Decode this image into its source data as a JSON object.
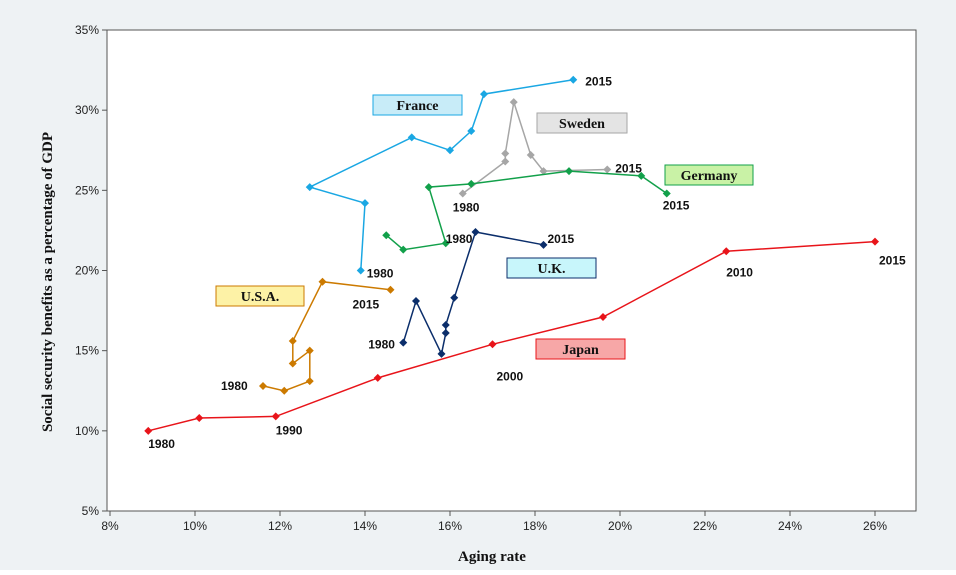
{
  "chart_data": {
    "type": "line",
    "xlabel": "Aging rate",
    "ylabel": "Social security benefits as a percentage of GDP",
    "xlim": [
      8,
      27
    ],
    "ylim": [
      5,
      35
    ],
    "x_ticks": [
      "8%",
      "10%",
      "12%",
      "14%",
      "16%",
      "18%",
      "20%",
      "22%",
      "24%",
      "26%"
    ],
    "y_ticks": [
      "5%",
      "10%",
      "15%",
      "20%",
      "25%",
      "30%",
      "35%"
    ],
    "grid": false,
    "series": [
      {
        "name": "Japan",
        "color": "#e8141a",
        "box_color": "#f7a7a7",
        "points": [
          [
            8.9,
            10.0
          ],
          [
            10.1,
            10.8
          ],
          [
            11.9,
            10.9
          ],
          [
            14.3,
            13.3
          ],
          [
            17.0,
            15.4
          ],
          [
            19.6,
            17.1
          ],
          [
            22.5,
            21.2
          ],
          [
            26.0,
            21.8
          ]
        ],
        "point_labels": [
          {
            "index": 0,
            "text": "1980"
          },
          {
            "index": 2,
            "text": "1990"
          },
          {
            "index": 4,
            "text": "2000"
          },
          {
            "index": 6,
            "text": "2010"
          },
          {
            "index": 7,
            "text": "2015"
          }
        ]
      },
      {
        "name": "U.S.A.",
        "color": "#cc7a00",
        "box_color": "#fdf2a6",
        "points": [
          [
            11.6,
            12.8
          ],
          [
            12.1,
            12.5
          ],
          [
            12.7,
            13.1
          ],
          [
            12.7,
            15.0
          ],
          [
            12.3,
            14.2
          ],
          [
            12.3,
            15.6
          ],
          [
            13.0,
            19.3
          ],
          [
            14.6,
            18.8
          ]
        ],
        "point_labels": [
          {
            "index": 0,
            "text": "1980"
          },
          {
            "index": 7,
            "text": "2015"
          }
        ]
      },
      {
        "name": "U.K.",
        "color": "#0b2e6b",
        "box_color": "#c8f6fb",
        "points": [
          [
            14.9,
            15.5
          ],
          [
            15.2,
            18.1
          ],
          [
            15.8,
            14.8
          ],
          [
            15.9,
            16.1
          ],
          [
            15.9,
            16.6
          ],
          [
            16.1,
            18.3
          ],
          [
            16.6,
            22.4
          ],
          [
            18.2,
            21.6
          ]
        ],
        "point_labels": [
          {
            "index": 0,
            "text": "1980"
          },
          {
            "index": 7,
            "text": "2015"
          }
        ]
      },
      {
        "name": "France",
        "color": "#1aa7e3",
        "box_color": "#c8ecf8",
        "points": [
          [
            13.9,
            20.0
          ],
          [
            14.0,
            24.2
          ],
          [
            12.7,
            25.2
          ],
          [
            15.1,
            28.3
          ],
          [
            16.0,
            27.5
          ],
          [
            16.5,
            28.7
          ],
          [
            16.8,
            31.0
          ],
          [
            18.9,
            31.9
          ]
        ],
        "point_labels": [
          {
            "index": 0,
            "text": "1980"
          },
          {
            "index": 7,
            "text": "2015"
          }
        ]
      },
      {
        "name": "Sweden",
        "color": "#a6a6a6",
        "box_color": "#e4e4e4",
        "points": [
          [
            16.3,
            24.8
          ],
          [
            17.3,
            26.8
          ],
          [
            17.3,
            27.3
          ],
          [
            17.5,
            30.5
          ],
          [
            17.9,
            27.2
          ],
          [
            18.2,
            26.2
          ],
          [
            19.7,
            26.3
          ]
        ],
        "point_labels": [
          {
            "index": 0,
            "text": "1980"
          },
          {
            "index": 6,
            "text": "2015"
          }
        ]
      },
      {
        "name": "Germany",
        "color": "#12a04a",
        "box_color": "#c9f2a6",
        "points": [
          [
            14.5,
            22.2
          ],
          [
            14.9,
            21.3
          ],
          [
            15.9,
            21.7
          ],
          [
            15.5,
            25.2
          ],
          [
            16.5,
            25.4
          ],
          [
            18.8,
            26.2
          ],
          [
            20.5,
            25.9
          ],
          [
            21.1,
            24.8
          ]
        ],
        "point_labels": [
          {
            "index": 2,
            "text": "1980"
          },
          {
            "index": 7,
            "text": "2015"
          }
        ]
      }
    ]
  }
}
